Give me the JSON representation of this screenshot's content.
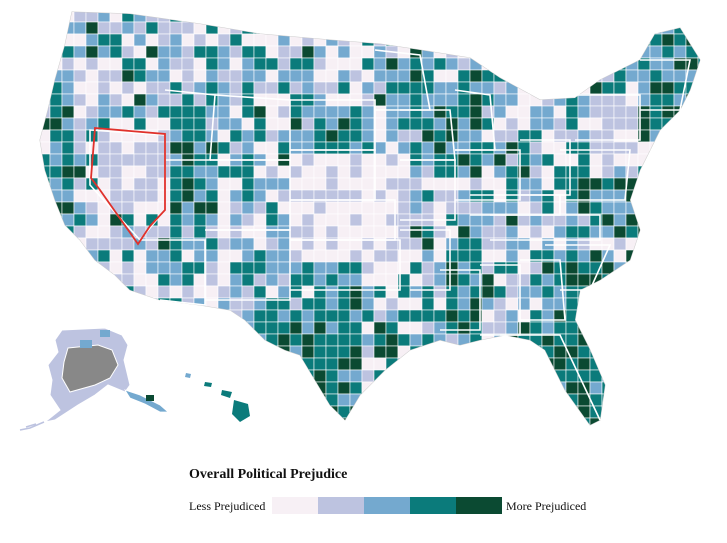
{
  "legend": {
    "title": "Overall Political Prejudice",
    "low_label": "Less Prejudiced",
    "high_label": "More Prejudiced",
    "colors": [
      "#f7f0f5",
      "#bdc3e0",
      "#74a9cf",
      "#0b7b7b",
      "#0b4a32"
    ]
  },
  "map": {
    "highlighted_state": "Nevada",
    "highlight_color": "#e0312b",
    "no_data_color": "#888888"
  }
}
